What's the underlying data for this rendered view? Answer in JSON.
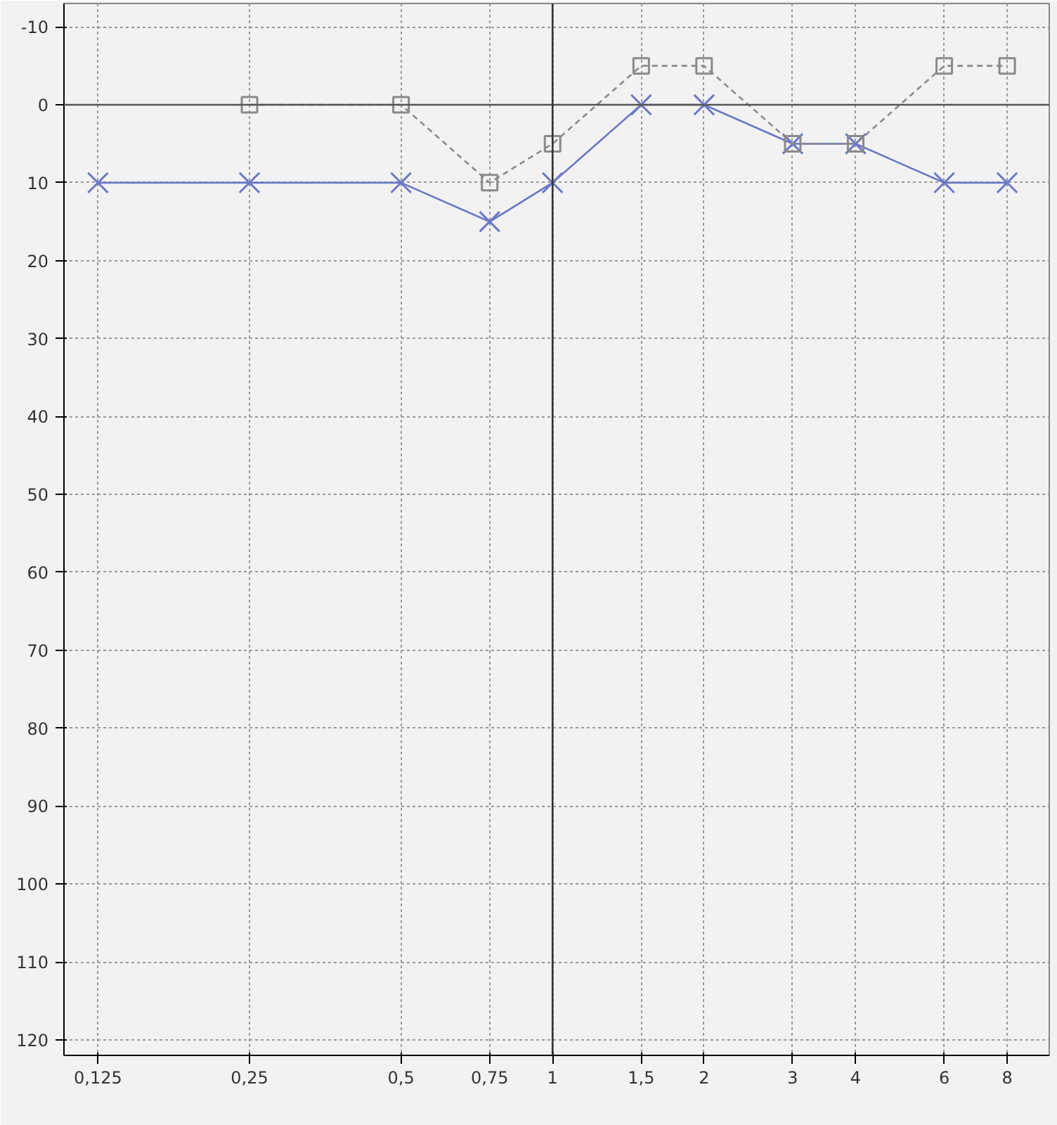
{
  "chart_data": {
    "type": "line",
    "log": "x",
    "grid": true,
    "xlim": [
      0.107,
      9.7
    ],
    "ylim": [
      122,
      -13
    ],
    "xticks": [
      {
        "value": 0.125,
        "label": "0,125"
      },
      {
        "value": 0.25,
        "label": "0,25"
      },
      {
        "value": 0.5,
        "label": "0,5"
      },
      {
        "value": 0.75,
        "label": "0,75"
      },
      1,
      {
        "value": 1.5,
        "label": "1,5"
      },
      2,
      3,
      4,
      6,
      8
    ],
    "yticks": [
      -10,
      0,
      10,
      20,
      30,
      40,
      50,
      60,
      70,
      80,
      90,
      100,
      110,
      120
    ],
    "ref_lines": [
      {
        "axis": "y",
        "value": 0,
        "color": "#555555"
      },
      {
        "axis": "x",
        "value": 1,
        "color": "#333333"
      }
    ],
    "series": [
      {
        "color": "#6a78c8",
        "marker": "cross",
        "line_style": "solid",
        "x": [
          0.125,
          0.25,
          0.5,
          0.75,
          1,
          1.5,
          2,
          3,
          4,
          6,
          8
        ],
        "values": [
          10,
          10,
          10,
          15,
          10,
          0,
          0,
          5,
          5,
          10,
          10
        ]
      },
      {
        "color": "#8a8a8a",
        "marker": "square",
        "line_style": "dashed",
        "x": [
          0.25,
          0.5,
          0.75,
          1,
          1.5,
          2,
          3,
          4,
          6,
          8
        ],
        "values": [
          0,
          0,
          10,
          5,
          -5,
          -5,
          5,
          5,
          -5,
          -5
        ]
      }
    ]
  }
}
